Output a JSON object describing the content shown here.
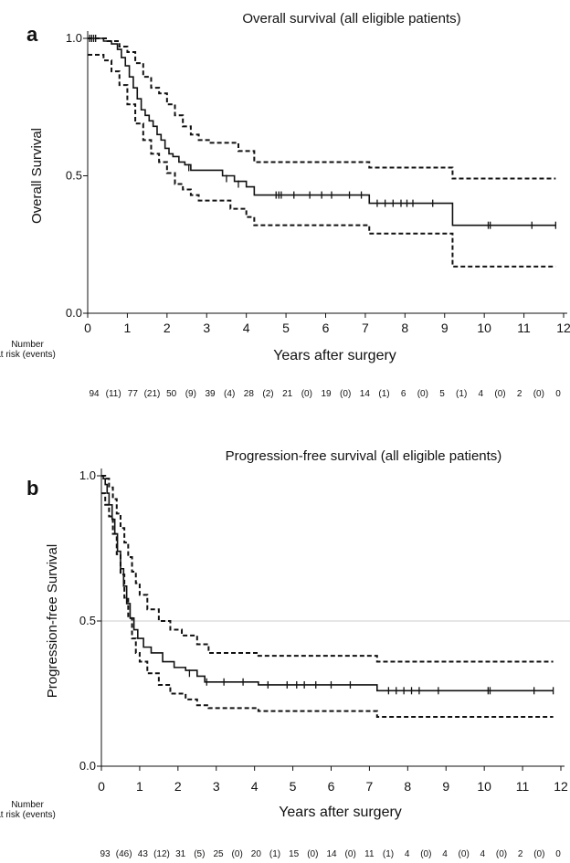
{
  "chart_data": [
    {
      "type": "line",
      "panel_letter": "a",
      "title": "Overall survival (all eligible patients)",
      "xlabel": "Years after surgery",
      "ylabel": "Overall Survival",
      "xlim": [
        0,
        12
      ],
      "ylim": [
        0,
        1
      ],
      "xticks": [
        "0",
        "1",
        "2",
        "3",
        "4",
        "5",
        "6",
        "7",
        "8",
        "9",
        "10",
        "11",
        "12"
      ],
      "yticks": [
        "0.0",
        "0.5",
        "1.0"
      ],
      "reference_line_y": null,
      "risk_table": {
        "label_line1": "Number",
        "label_line2": "at risk (events)",
        "entries": [
          {
            "time": 0,
            "n": "94",
            "events": "(11)"
          },
          {
            "time": 1,
            "n": "77",
            "events": "(21)"
          },
          {
            "time": 2,
            "n": "50",
            "events": "(9)"
          },
          {
            "time": 3,
            "n": "39",
            "events": "(4)"
          },
          {
            "time": 4,
            "n": "28",
            "events": "(2)"
          },
          {
            "time": 5,
            "n": "21",
            "events": "(0)"
          },
          {
            "time": 6,
            "n": "19",
            "events": "(0)"
          },
          {
            "time": 7,
            "n": "14",
            "events": "(1)"
          },
          {
            "time": 8,
            "n": "6",
            "events": "(0)"
          },
          {
            "time": 9,
            "n": "5",
            "events": "(1)"
          },
          {
            "time": 10,
            "n": "4",
            "events": "(0)"
          },
          {
            "time": 11,
            "n": "2",
            "events": "(0)"
          },
          {
            "time": 12,
            "n": "0",
            "events": ""
          }
        ]
      },
      "series": [
        {
          "style": "solid",
          "points": [
            [
              0,
              1.0
            ],
            [
              0.3,
              1.0
            ],
            [
              0.4,
              0.99
            ],
            [
              0.6,
              0.98
            ],
            [
              0.75,
              0.96
            ],
            [
              0.85,
              0.93
            ],
            [
              0.95,
              0.9
            ],
            [
              1.05,
              0.86
            ],
            [
              1.15,
              0.82
            ],
            [
              1.25,
              0.78
            ],
            [
              1.35,
              0.74
            ],
            [
              1.45,
              0.72
            ],
            [
              1.55,
              0.7
            ],
            [
              1.65,
              0.68
            ],
            [
              1.75,
              0.65
            ],
            [
              1.85,
              0.63
            ],
            [
              1.95,
              0.6
            ],
            [
              2.05,
              0.58
            ],
            [
              2.15,
              0.57
            ],
            [
              2.3,
              0.55
            ],
            [
              2.45,
              0.54
            ],
            [
              2.6,
              0.52
            ],
            [
              3.1,
              0.52
            ],
            [
              3.4,
              0.5
            ],
            [
              3.7,
              0.48
            ],
            [
              4.0,
              0.46
            ],
            [
              4.2,
              0.43
            ],
            [
              7.05,
              0.43
            ],
            [
              7.1,
              0.4
            ],
            [
              9.15,
              0.4
            ],
            [
              9.2,
              0.32
            ],
            [
              11.8,
              0.32
            ]
          ]
        },
        {
          "style": "dashed",
          "points": [
            [
              0,
              1.0
            ],
            [
              0.3,
              1.0
            ],
            [
              0.5,
              0.99
            ],
            [
              0.8,
              0.97
            ],
            [
              1.0,
              0.95
            ],
            [
              1.2,
              0.91
            ],
            [
              1.4,
              0.86
            ],
            [
              1.6,
              0.82
            ],
            [
              1.8,
              0.8
            ],
            [
              2.0,
              0.76
            ],
            [
              2.2,
              0.72
            ],
            [
              2.4,
              0.68
            ],
            [
              2.6,
              0.65
            ],
            [
              2.8,
              0.63
            ],
            [
              3.1,
              0.62
            ],
            [
              3.6,
              0.62
            ],
            [
              3.8,
              0.59
            ],
            [
              4.2,
              0.55
            ],
            [
              7.05,
              0.55
            ],
            [
              7.1,
              0.53
            ],
            [
              9.15,
              0.53
            ],
            [
              9.2,
              0.49
            ],
            [
              11.8,
              0.49
            ]
          ]
        },
        {
          "style": "dashed",
          "points": [
            [
              0,
              0.94
            ],
            [
              0.2,
              0.94
            ],
            [
              0.4,
              0.92
            ],
            [
              0.6,
              0.88
            ],
            [
              0.8,
              0.83
            ],
            [
              1.0,
              0.76
            ],
            [
              1.2,
              0.69
            ],
            [
              1.4,
              0.63
            ],
            [
              1.6,
              0.58
            ],
            [
              1.8,
              0.55
            ],
            [
              2.0,
              0.51
            ],
            [
              2.2,
              0.47
            ],
            [
              2.4,
              0.45
            ],
            [
              2.6,
              0.43
            ],
            [
              2.8,
              0.41
            ],
            [
              3.3,
              0.41
            ],
            [
              3.6,
              0.38
            ],
            [
              4.0,
              0.35
            ],
            [
              4.2,
              0.32
            ],
            [
              7.05,
              0.32
            ],
            [
              7.1,
              0.29
            ],
            [
              9.15,
              0.29
            ],
            [
              9.2,
              0.17
            ],
            [
              11.8,
              0.17
            ]
          ]
        }
      ],
      "censor_marks": [
        [
          0.05,
          1.0
        ],
        [
          0.1,
          1.0
        ],
        [
          0.15,
          1.0
        ],
        [
          0.2,
          1.0
        ],
        [
          2.55,
          0.53
        ],
        [
          3.5,
          0.49
        ],
        [
          3.8,
          0.47
        ],
        [
          4.75,
          0.43
        ],
        [
          4.82,
          0.43
        ],
        [
          4.88,
          0.43
        ],
        [
          5.2,
          0.43
        ],
        [
          5.6,
          0.43
        ],
        [
          5.9,
          0.43
        ],
        [
          6.15,
          0.43
        ],
        [
          6.6,
          0.43
        ],
        [
          6.9,
          0.43
        ],
        [
          7.3,
          0.4
        ],
        [
          7.5,
          0.4
        ],
        [
          7.7,
          0.4
        ],
        [
          7.9,
          0.4
        ],
        [
          8.05,
          0.4
        ],
        [
          8.2,
          0.4
        ],
        [
          8.7,
          0.4
        ],
        [
          10.1,
          0.32
        ],
        [
          10.15,
          0.32
        ],
        [
          11.2,
          0.32
        ],
        [
          11.8,
          0.32
        ]
      ]
    },
    {
      "type": "line",
      "panel_letter": "b",
      "title": "Progression-free survival (all eligible patients)",
      "xlabel": "Years after surgery",
      "ylabel": "Progression-free Survival",
      "xlim": [
        0,
        12
      ],
      "ylim": [
        0,
        1
      ],
      "xticks": [
        "0",
        "1",
        "2",
        "3",
        "4",
        "5",
        "6",
        "7",
        "8",
        "9",
        "10",
        "11",
        "12"
      ],
      "yticks": [
        "0.0",
        "0.5",
        "1.0"
      ],
      "reference_line_y": 0.5,
      "risk_table": {
        "label_line1": "Number",
        "label_line2": "at risk (events)",
        "entries": [
          {
            "time": 0,
            "n": "93",
            "events": "(46)"
          },
          {
            "time": 1,
            "n": "43",
            "events": "(12)"
          },
          {
            "time": 2,
            "n": "31",
            "events": "(5)"
          },
          {
            "time": 3,
            "n": "25",
            "events": "(0)"
          },
          {
            "time": 4,
            "n": "20",
            "events": "(1)"
          },
          {
            "time": 5,
            "n": "15",
            "events": "(0)"
          },
          {
            "time": 6,
            "n": "14",
            "events": "(0)"
          },
          {
            "time": 7,
            "n": "11",
            "events": "(1)"
          },
          {
            "time": 8,
            "n": "4",
            "events": "(0)"
          },
          {
            "time": 9,
            "n": "4",
            "events": "(0)"
          },
          {
            "time": 10,
            "n": "4",
            "events": "(0)"
          },
          {
            "time": 11,
            "n": "2",
            "events": "(0)"
          },
          {
            "time": 12,
            "n": "0",
            "events": ""
          }
        ]
      },
      "series": [
        {
          "style": "solid",
          "points": [
            [
              0,
              1.0
            ],
            [
              0.05,
              0.99
            ],
            [
              0.1,
              0.97
            ],
            [
              0.15,
              0.94
            ],
            [
              0.2,
              0.9
            ],
            [
              0.28,
              0.85
            ],
            [
              0.35,
              0.8
            ],
            [
              0.42,
              0.74
            ],
            [
              0.5,
              0.68
            ],
            [
              0.58,
              0.62
            ],
            [
              0.66,
              0.56
            ],
            [
              0.75,
              0.51
            ],
            [
              0.85,
              0.47
            ],
            [
              0.95,
              0.44
            ],
            [
              1.1,
              0.41
            ],
            [
              1.3,
              0.39
            ],
            [
              1.6,
              0.36
            ],
            [
              1.9,
              0.34
            ],
            [
              2.2,
              0.33
            ],
            [
              2.5,
              0.31
            ],
            [
              2.7,
              0.29
            ],
            [
              4.0,
              0.29
            ],
            [
              4.1,
              0.28
            ],
            [
              7.1,
              0.28
            ],
            [
              7.2,
              0.26
            ],
            [
              11.8,
              0.26
            ]
          ]
        },
        {
          "style": "dashed",
          "points": [
            [
              0,
              1.0
            ],
            [
              0.1,
              0.99
            ],
            [
              0.2,
              0.96
            ],
            [
              0.3,
              0.92
            ],
            [
              0.4,
              0.87
            ],
            [
              0.5,
              0.82
            ],
            [
              0.6,
              0.77
            ],
            [
              0.7,
              0.72
            ],
            [
              0.8,
              0.67
            ],
            [
              0.9,
              0.63
            ],
            [
              1.0,
              0.59
            ],
            [
              1.2,
              0.54
            ],
            [
              1.5,
              0.5
            ],
            [
              1.8,
              0.47
            ],
            [
              2.1,
              0.45
            ],
            [
              2.5,
              0.42
            ],
            [
              2.8,
              0.39
            ],
            [
              4.0,
              0.39
            ],
            [
              4.1,
              0.38
            ],
            [
              7.1,
              0.38
            ],
            [
              7.2,
              0.36
            ],
            [
              11.8,
              0.36
            ]
          ]
        },
        {
          "style": "dashed",
          "points": [
            [
              0,
              0.94
            ],
            [
              0.1,
              0.9
            ],
            [
              0.2,
              0.86
            ],
            [
              0.3,
              0.8
            ],
            [
              0.4,
              0.73
            ],
            [
              0.5,
              0.66
            ],
            [
              0.6,
              0.58
            ],
            [
              0.7,
              0.51
            ],
            [
              0.8,
              0.44
            ],
            [
              0.9,
              0.39
            ],
            [
              1.0,
              0.36
            ],
            [
              1.2,
              0.32
            ],
            [
              1.5,
              0.28
            ],
            [
              1.8,
              0.25
            ],
            [
              2.2,
              0.23
            ],
            [
              2.5,
              0.21
            ],
            [
              2.8,
              0.2
            ],
            [
              4.0,
              0.2
            ],
            [
              4.1,
              0.19
            ],
            [
              7.1,
              0.19
            ],
            [
              7.2,
              0.17
            ],
            [
              11.8,
              0.17
            ]
          ]
        }
      ],
      "censor_marks": [
        [
          2.3,
          0.32
        ],
        [
          2.75,
          0.29
        ],
        [
          3.2,
          0.29
        ],
        [
          3.7,
          0.29
        ],
        [
          4.35,
          0.28
        ],
        [
          4.85,
          0.28
        ],
        [
          5.1,
          0.28
        ],
        [
          5.3,
          0.28
        ],
        [
          5.6,
          0.28
        ],
        [
          6.0,
          0.28
        ],
        [
          6.5,
          0.28
        ],
        [
          7.5,
          0.26
        ],
        [
          7.7,
          0.26
        ],
        [
          7.9,
          0.26
        ],
        [
          8.1,
          0.26
        ],
        [
          8.3,
          0.26
        ],
        [
          8.8,
          0.26
        ],
        [
          10.1,
          0.26
        ],
        [
          10.15,
          0.26
        ],
        [
          11.3,
          0.26
        ],
        [
          11.8,
          0.26
        ]
      ]
    }
  ]
}
